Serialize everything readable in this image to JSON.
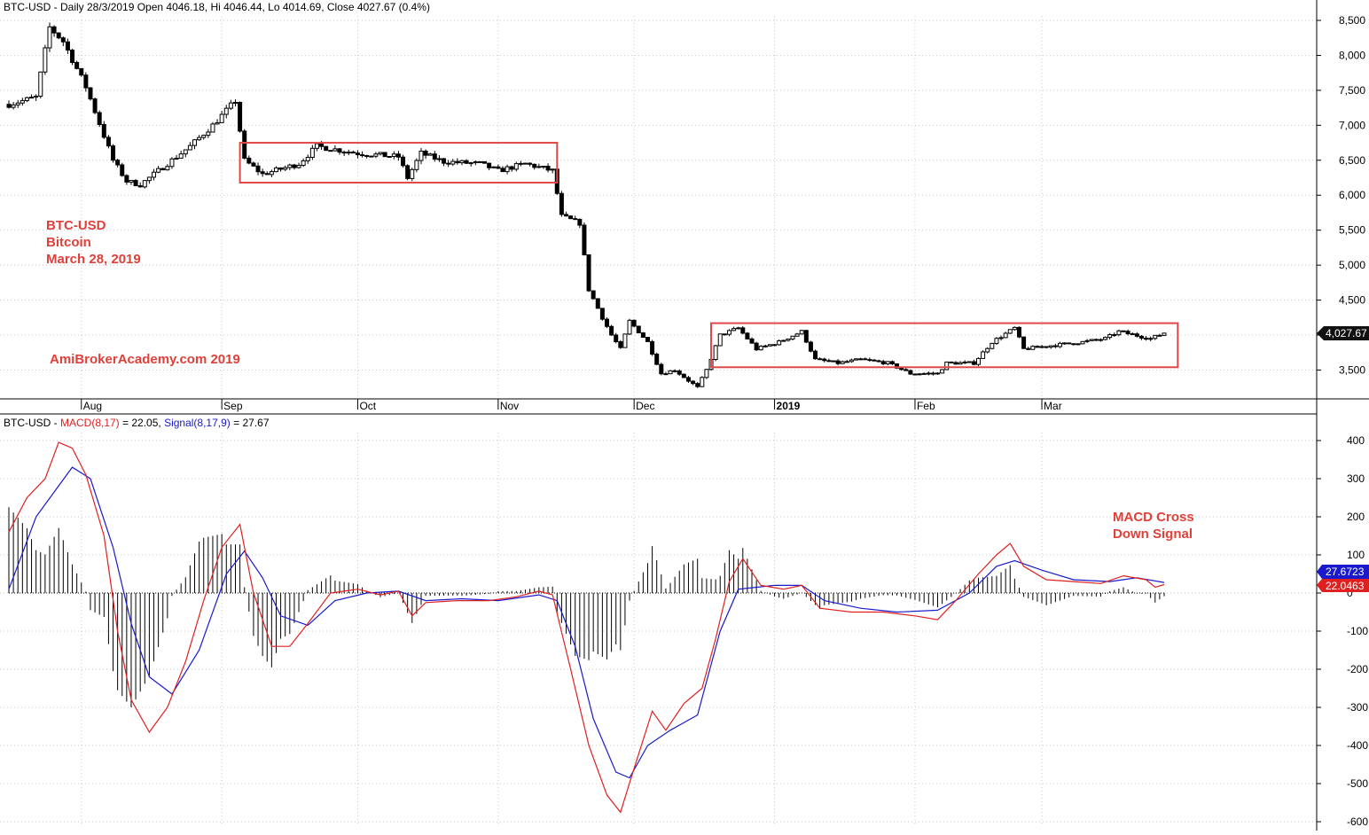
{
  "price_panel": {
    "header": "BTC-USD - Daily 28/3/2019 Open 4046.18, Hi 4046.44, Lo 4014.69, Close 4027.67 (0.4%)",
    "annotations": {
      "symbol": "BTC-USD",
      "name": "Bitcoin",
      "date": "March 28, 2019",
      "watermark": "AmiBrokerAcademy.com  2019"
    },
    "last_price_badge": "4,027.67",
    "y_ticks": [
      "8,500",
      "8,000",
      "7,500",
      "7,000",
      "6,500",
      "6,000",
      "5,500",
      "5,000",
      "4,500",
      "4,000",
      "3,500"
    ],
    "x_ticks": [
      "Aug",
      "Sep",
      "Oct",
      "Nov",
      "Dec",
      "2019",
      "Feb",
      "Mar"
    ]
  },
  "macd_panel": {
    "header_prefix": "BTC-USD - ",
    "header_macd": "MACD(8,17)",
    "header_macd_val": " = 22.05, ",
    "header_signal": "Signal(8,17,9)",
    "header_signal_val": " = 27.67",
    "annotation_line1": "MACD Cross",
    "annotation_line2": "Down Signal",
    "signal_badge": "27.6723",
    "macd_badge": "22.0463",
    "y_ticks": [
      "400",
      "300",
      "200",
      "100",
      "0",
      "-100",
      "-200",
      "-300",
      "-400",
      "-500",
      "-600"
    ]
  },
  "colors": {
    "candle": "#000000",
    "macd_line": "#e02020",
    "signal_line": "#1a1acc",
    "box": "#e04848",
    "annotation": "#e0403a",
    "badge_dark": "#111111",
    "badge_blue": "#1a1acc",
    "badge_red": "#e02020",
    "grid": "#c8c8c8"
  },
  "chart_data": [
    {
      "type": "candlestick",
      "title": "BTC-USD - Daily 28/3/2019 Open 4046.18, Hi 4046.44, Lo 4014.69, Close 4027.67 (0.4%)",
      "x_start": "2018-07-16",
      "x_end": "2019-03-28",
      "ylim": [
        3150,
        8750
      ],
      "grid": true,
      "price_path": [
        [
          "2018-07-16",
          7300
        ],
        [
          "2018-07-22",
          7400
        ],
        [
          "2018-07-25",
          8400
        ],
        [
          "2018-07-28",
          8200
        ],
        [
          "2018-08-02",
          7550
        ],
        [
          "2018-08-08",
          6500
        ],
        [
          "2018-08-11",
          6200
        ],
        [
          "2018-08-14",
          6150
        ],
        [
          "2018-08-20",
          6450
        ],
        [
          "2018-08-25",
          6700
        ],
        [
          "2018-08-30",
          7000
        ],
        [
          "2018-09-04",
          7350
        ],
        [
          "2018-09-06",
          6500
        ],
        [
          "2018-09-10",
          6300
        ],
        [
          "2018-09-18",
          6450
        ],
        [
          "2018-09-22",
          6700
        ],
        [
          "2018-10-01",
          6600
        ],
        [
          "2018-10-10",
          6550
        ],
        [
          "2018-10-12",
          6250
        ],
        [
          "2018-10-15",
          6600
        ],
        [
          "2018-10-20",
          6480
        ],
        [
          "2018-10-28",
          6450
        ],
        [
          "2018-11-01",
          6350
        ],
        [
          "2018-11-07",
          6450
        ],
        [
          "2018-11-13",
          6350
        ],
        [
          "2018-11-15",
          5700
        ],
        [
          "2018-11-19",
          5600
        ],
        [
          "2018-11-21",
          4650
        ],
        [
          "2018-11-24",
          4250
        ],
        [
          "2018-11-26",
          4000
        ],
        [
          "2018-11-28",
          3800
        ],
        [
          "2018-11-30",
          4200
        ],
        [
          "2018-12-04",
          3900
        ],
        [
          "2018-12-07",
          3450
        ],
        [
          "2018-12-10",
          3500
        ],
        [
          "2018-12-15",
          3250
        ],
        [
          "2018-12-17",
          3500
        ],
        [
          "2018-12-20",
          4000
        ],
        [
          "2018-12-24",
          4100
        ],
        [
          "2018-12-28",
          3800
        ],
        [
          "2019-01-02",
          3900
        ],
        [
          "2019-01-07",
          4050
        ],
        [
          "2019-01-10",
          3650
        ],
        [
          "2019-01-15",
          3600
        ],
        [
          "2019-01-20",
          3650
        ],
        [
          "2019-01-26",
          3600
        ],
        [
          "2019-01-31",
          3450
        ],
        [
          "2019-02-06",
          3450
        ],
        [
          "2019-02-08",
          3600
        ],
        [
          "2019-02-14",
          3600
        ],
        [
          "2019-02-18",
          3900
        ],
        [
          "2019-02-23",
          4100
        ],
        [
          "2019-02-25",
          3800
        ],
        [
          "2019-03-03",
          3850
        ],
        [
          "2019-03-10",
          3900
        ],
        [
          "2019-03-15",
          3950
        ],
        [
          "2019-03-18",
          4050
        ],
        [
          "2019-03-25",
          3950
        ],
        [
          "2019-03-28",
          4028
        ]
      ],
      "last": {
        "date": "2019-03-28",
        "open": 4046.18,
        "high": 4046.44,
        "low": 4014.69,
        "close": 4027.67
      },
      "boxes": [
        {
          "x_from": "2018-09-05",
          "x_to": "2018-11-14",
          "y_from": 6180,
          "y_to": 6750
        },
        {
          "x_from": "2018-12-18",
          "x_to": "2019-03-31",
          "y_from": 3540,
          "y_to": 4170
        }
      ]
    },
    {
      "type": "line",
      "title": "BTC-USD - MACD(8,17) = 22.05, Signal(8,17,9) = 27.67",
      "ylim": [
        -610,
        450
      ],
      "grid": true,
      "series": [
        {
          "name": "MACD(8,17)",
          "points": [
            [
              "2018-07-16",
              160
            ],
            [
              "2018-07-20",
              250
            ],
            [
              "2018-07-24",
              300
            ],
            [
              "2018-07-27",
              395
            ],
            [
              "2018-07-30",
              380
            ],
            [
              "2018-08-02",
              310
            ],
            [
              "2018-08-06",
              150
            ],
            [
              "2018-08-09",
              -100
            ],
            [
              "2018-08-12",
              -280
            ],
            [
              "2018-08-16",
              -365
            ],
            [
              "2018-08-20",
              -300
            ],
            [
              "2018-08-24",
              -180
            ],
            [
              "2018-08-28",
              -20
            ],
            [
              "2018-09-01",
              120
            ],
            [
              "2018-09-05",
              180
            ],
            [
              "2018-09-08",
              0
            ],
            [
              "2018-09-12",
              -140
            ],
            [
              "2018-09-16",
              -140
            ],
            [
              "2018-09-20",
              -80
            ],
            [
              "2018-09-25",
              0
            ],
            [
              "2018-10-01",
              10
            ],
            [
              "2018-10-06",
              -5
            ],
            [
              "2018-10-10",
              5
            ],
            [
              "2018-10-13",
              -60
            ],
            [
              "2018-10-16",
              -25
            ],
            [
              "2018-10-23",
              -20
            ],
            [
              "2018-10-30",
              -20
            ],
            [
              "2018-11-05",
              -10
            ],
            [
              "2018-11-10",
              5
            ],
            [
              "2018-11-13",
              -5
            ],
            [
              "2018-11-17",
              -200
            ],
            [
              "2018-11-21",
              -400
            ],
            [
              "2018-11-25",
              -530
            ],
            [
              "2018-11-28",
              -575
            ],
            [
              "2018-12-01",
              -460
            ],
            [
              "2018-12-05",
              -310
            ],
            [
              "2018-12-08",
              -360
            ],
            [
              "2018-12-12",
              -290
            ],
            [
              "2018-12-16",
              -250
            ],
            [
              "2018-12-19",
              -120
            ],
            [
              "2018-12-22",
              30
            ],
            [
              "2018-12-25",
              90
            ],
            [
              "2018-12-29",
              20
            ],
            [
              "2019-01-03",
              10
            ],
            [
              "2019-01-07",
              20
            ],
            [
              "2019-01-11",
              -40
            ],
            [
              "2019-01-18",
              -50
            ],
            [
              "2019-01-25",
              -50
            ],
            [
              "2019-02-01",
              -60
            ],
            [
              "2019-02-06",
              -70
            ],
            [
              "2019-02-10",
              -20
            ],
            [
              "2019-02-15",
              50
            ],
            [
              "2019-02-19",
              100
            ],
            [
              "2019-02-22",
              130
            ],
            [
              "2019-02-25",
              70
            ],
            [
              "2019-03-02",
              35
            ],
            [
              "2019-03-08",
              30
            ],
            [
              "2019-03-14",
              25
            ],
            [
              "2019-03-19",
              45
            ],
            [
              "2019-03-24",
              35
            ],
            [
              "2019-03-26",
              15
            ],
            [
              "2019-03-28",
              22.05
            ]
          ]
        },
        {
          "name": "Signal(8,17,9)",
          "points": [
            [
              "2018-07-16",
              10
            ],
            [
              "2018-07-22",
              200
            ],
            [
              "2018-07-30",
              330
            ],
            [
              "2018-08-03",
              300
            ],
            [
              "2018-08-08",
              120
            ],
            [
              "2018-08-12",
              -80
            ],
            [
              "2018-08-16",
              -220
            ],
            [
              "2018-08-21",
              -265
            ],
            [
              "2018-08-27",
              -150
            ],
            [
              "2018-09-02",
              50
            ],
            [
              "2018-09-06",
              110
            ],
            [
              "2018-09-10",
              40
            ],
            [
              "2018-09-14",
              -60
            ],
            [
              "2018-09-20",
              -85
            ],
            [
              "2018-09-26",
              -20
            ],
            [
              "2018-10-03",
              0
            ],
            [
              "2018-10-10",
              5
            ],
            [
              "2018-10-16",
              -20
            ],
            [
              "2018-10-24",
              -15
            ],
            [
              "2018-11-01",
              -20
            ],
            [
              "2018-11-10",
              -5
            ],
            [
              "2018-11-14",
              -20
            ],
            [
              "2018-11-18",
              -140
            ],
            [
              "2018-11-22",
              -330
            ],
            [
              "2018-11-27",
              -470
            ],
            [
              "2018-11-30",
              -485
            ],
            [
              "2018-12-04",
              -400
            ],
            [
              "2018-12-09",
              -360
            ],
            [
              "2018-12-15",
              -320
            ],
            [
              "2018-12-20",
              -100
            ],
            [
              "2018-12-24",
              10
            ],
            [
              "2019-01-01",
              20
            ],
            [
              "2019-01-07",
              20
            ],
            [
              "2019-01-12",
              -20
            ],
            [
              "2019-01-20",
              -40
            ],
            [
              "2019-01-28",
              -50
            ],
            [
              "2019-02-06",
              -45
            ],
            [
              "2019-02-13",
              0
            ],
            [
              "2019-02-19",
              70
            ],
            [
              "2019-02-23",
              85
            ],
            [
              "2019-03-01",
              60
            ],
            [
              "2019-03-08",
              35
            ],
            [
              "2019-03-16",
              30
            ],
            [
              "2019-03-22",
              40
            ],
            [
              "2019-03-28",
              27.67
            ]
          ]
        }
      ],
      "histogram": "MACD minus Signal"
    }
  ]
}
